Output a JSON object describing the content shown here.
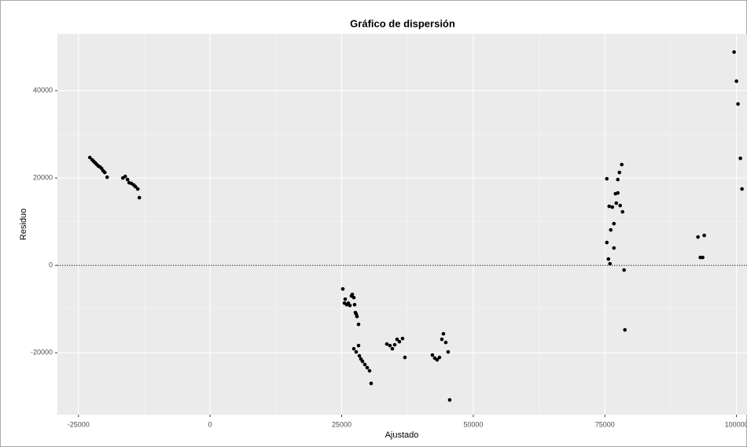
{
  "chart_data": {
    "type": "scatter",
    "title": "Gráfico de dispersión",
    "x_label": "Ajustado",
    "y_label": "Residuo",
    "color": "#000000",
    "grid": true,
    "hline": 0,
    "xlim": [
      -29000,
      102000
    ],
    "ylim": [
      -34200,
      53000
    ],
    "xticks": [
      -25000,
      0,
      25000,
      50000,
      75000,
      100000
    ],
    "yticks": [
      -20000,
      0,
      20000,
      40000
    ],
    "x": [
      -22836,
      -22388,
      -22090,
      -21791,
      -21493,
      -21194,
      -20896,
      -20597,
      -20299,
      -20000,
      -19552,
      -16567,
      -16119,
      -15672,
      -15373,
      -14925,
      -14478,
      -14179,
      -13731,
      -13433,
      25224,
      25672,
      25522,
      25970,
      26269,
      26567,
      26866,
      27015,
      27313,
      27463,
      27612,
      27761,
      27910,
      28209,
      27313,
      27761,
      28209,
      28358,
      28657,
      28955,
      29403,
      29851,
      30299,
      30597,
      33582,
      34179,
      34627,
      35075,
      35522,
      35970,
      36567,
      37015,
      42239,
      42686,
      43134,
      43582,
      44030,
      44328,
      44776,
      45224,
      45522,
      75373,
      75821,
      76119,
      76418,
      76716,
      77015,
      77164,
      77463,
      77463,
      77761,
      77910,
      78209,
      78358,
      78657,
      78806,
      75373,
      75672,
      75970,
      76716,
      99552,
      100000,
      100299,
      100746,
      101045,
      92687,
      93134,
      93582,
      93881
    ],
    "values": [
      24685,
      24144,
      23784,
      23423,
      23063,
      22703,
      22523,
      22162,
      21622,
      21261,
      20180,
      20000,
      20360,
      19640,
      18919,
      18739,
      18378,
      18018,
      17477,
      15495,
      -5405,
      -7748,
      -8649,
      -9009,
      -8649,
      -9189,
      -7027,
      -6667,
      -7387,
      -9009,
      -10811,
      -11171,
      -11712,
      -13514,
      -19099,
      -19820,
      -18378,
      -20721,
      -21441,
      -21982,
      -22703,
      -23423,
      -24144,
      -27027,
      -18018,
      -18378,
      -19099,
      -18198,
      -16937,
      -17477,
      -16757,
      -21081,
      -20541,
      -21261,
      -21622,
      -21081,
      -16937,
      -15676,
      -17658,
      -19820,
      -30811,
      19820,
      13514,
      8108,
      13333,
      9550,
      16396,
      14234,
      16577,
      19640,
      21261,
      13694,
      23063,
      12252,
      -1081,
      -14775,
      5225,
      1441,
      360,
      3964,
      48829,
      42162,
      36937,
      24505,
      17477,
      6486,
      1802,
      1802,
      6847
    ]
  }
}
